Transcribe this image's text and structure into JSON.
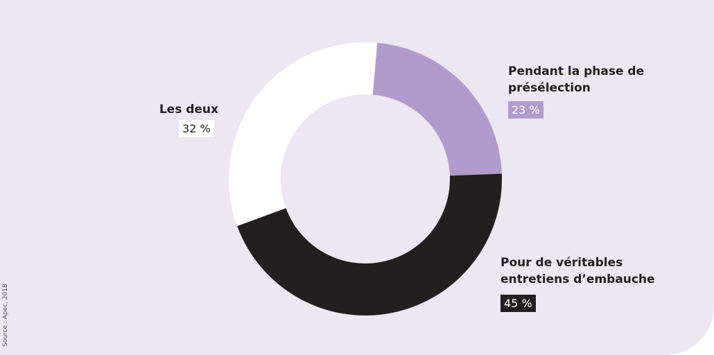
{
  "chart_data": {
    "type": "pie",
    "categories": [
      "Pendant la phase de présélection",
      "Pour de véritables entretiens d’embauche",
      "Les deux"
    ],
    "values": [
      23,
      45,
      32
    ],
    "value_labels": [
      "23 %",
      "45 %",
      "32 %"
    ],
    "colors": [
      "#b19bcc",
      "#231f20",
      "#ffffff"
    ],
    "source": "Source : Apec, 2018"
  }
}
